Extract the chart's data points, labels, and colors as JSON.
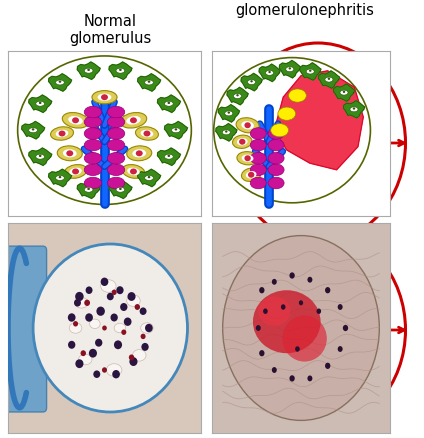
{
  "title_left": "Normal\nglomerulus",
  "title_right": "glomerulonephritis",
  "title_fontsize": 10.5,
  "title_color": "#000000",
  "arrow_color": "#cc0000",
  "circle_color": "#cc0000",
  "circle_linewidth": 2.2,
  "arrow_linewidth": 2.0,
  "background_color": "#ffffff",
  "panel_border_color": "#aaaaaa",
  "panel_border_lw": 0.8
}
